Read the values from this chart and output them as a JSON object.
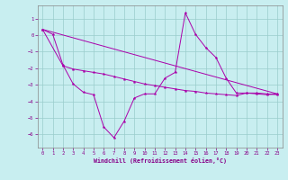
{
  "xlabel": "Windchill (Refroidissement éolien,°C)",
  "background_color": "#c8eef0",
  "line_color": "#aa00aa",
  "grid_color": "#99cccc",
  "xlim": [
    -0.5,
    23.5
  ],
  "ylim": [
    -6.8,
    1.8
  ],
  "yticks": [
    1,
    0,
    -1,
    -2,
    -3,
    -4,
    -5,
    -6
  ],
  "xticks": [
    0,
    1,
    2,
    3,
    4,
    5,
    6,
    7,
    8,
    9,
    10,
    11,
    12,
    13,
    14,
    15,
    16,
    17,
    18,
    19,
    20,
    21,
    22,
    23
  ],
  "line1_x": [
    0,
    1,
    2,
    3,
    4,
    5,
    6,
    7,
    8,
    9,
    10,
    11,
    12,
    13,
    14,
    15,
    16,
    17,
    18,
    19,
    20,
    21,
    22,
    23
  ],
  "line1_y": [
    0.35,
    0.05,
    -1.8,
    -2.95,
    -3.45,
    -3.6,
    -5.55,
    -6.2,
    -5.2,
    -3.8,
    -3.55,
    -3.55,
    -2.6,
    -2.25,
    1.35,
    0.05,
    -0.75,
    -1.35,
    -2.6,
    -3.5,
    -3.5,
    -3.55,
    -3.6,
    -3.55
  ],
  "line2_x": [
    0,
    2,
    3,
    4,
    5,
    6,
    7,
    8,
    9,
    10,
    11,
    12,
    13,
    14,
    15,
    16,
    17,
    18,
    19,
    20,
    21,
    22,
    23
  ],
  "line2_y": [
    0.35,
    -1.85,
    -2.05,
    -2.15,
    -2.25,
    -2.35,
    -2.5,
    -2.65,
    -2.8,
    -2.95,
    -3.05,
    -3.15,
    -3.25,
    -3.35,
    -3.4,
    -3.5,
    -3.55,
    -3.6,
    -3.65,
    -3.5,
    -3.5,
    -3.55,
    -3.6
  ],
  "line3_x": [
    0,
    23
  ],
  "line3_y": [
    0.35,
    -3.55
  ]
}
